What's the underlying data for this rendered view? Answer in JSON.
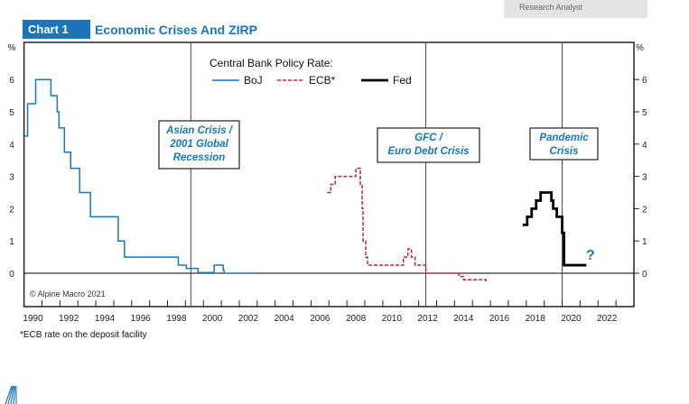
{
  "header": {
    "analyst": "Research Analyst",
    "chart_number": "Chart 1",
    "title": "Economic Crises And ZIRP"
  },
  "footnote": "*ECB rate on the deposit facility",
  "copyright": "© Alpine Macro 2021",
  "chart_data": {
    "type": "line",
    "title": "Economic Crises And ZIRP",
    "ylabel_left": "%",
    "ylabel_right": "%",
    "xlim": [
      1990,
      2024
    ],
    "ylim": [
      -1.6,
      7.15
    ],
    "x_ticks": [
      1990,
      1992,
      1994,
      1996,
      1998,
      2000,
      2002,
      2004,
      2006,
      2008,
      2010,
      2012,
      2014,
      2016,
      2018,
      2020,
      2022
    ],
    "y_ticks": [
      0,
      1,
      2,
      3,
      4,
      5,
      6
    ],
    "grid": false,
    "legend": {
      "title": "Central Bank Policy Rate:",
      "placement": "top-center"
    },
    "series": [
      {
        "name": "BoJ",
        "color": "#1a75bb",
        "style": "solid",
        "step": true,
        "x": [
          1990,
          1990.2,
          1990.65,
          1991.5,
          1991.85,
          1991.95,
          1992.25,
          1992.6,
          1993.1,
          1993.7,
          1995.25,
          1995.6,
          1998.6,
          1999.05,
          1999.7,
          2000.6,
          2001.1,
          2001.15,
          2002.9
        ],
        "y": [
          4.25,
          5.25,
          6,
          5.5,
          5,
          4.5,
          3.75,
          3.25,
          2.5,
          1.75,
          1,
          0.5,
          0.25,
          0.15,
          0.02,
          0.25,
          0.1,
          0.0,
          0.0
        ]
      },
      {
        "name": "ECB*",
        "color": "#b22a3a",
        "style": "dashed",
        "step": true,
        "x": [
          2006.9,
          2007.1,
          2007.35,
          2008.5,
          2008.75,
          2008.85,
          2008.9,
          2009.05,
          2009.15,
          2011.15,
          2011.4,
          2011.6,
          2011.8,
          2012.4,
          2014.25,
          2014.5,
          2015.75
        ],
        "y": [
          2.5,
          2.75,
          3,
          3.25,
          2.75,
          2,
          1,
          0.5,
          0.25,
          0.5,
          0.75,
          0.5,
          0.25,
          0,
          -0.1,
          -0.2,
          -0.3
        ]
      },
      {
        "name": "Fed",
        "color": "#000000",
        "style": "solid-thick",
        "step": true,
        "x": [
          2017.8,
          2018.05,
          2018.3,
          2018.55,
          2018.8,
          2019.4,
          2019.5,
          2019.7,
          2020.0,
          2020.1,
          2021.35
        ],
        "y": [
          1.5,
          1.75,
          2,
          2.25,
          2.5,
          2.25,
          2,
          1.75,
          1.25,
          0.25,
          0.25
        ]
      }
    ],
    "crises": [
      {
        "year": 1999.3,
        "label_lines": [
          "Asian Crisis /",
          "2001 Global",
          "Recession"
        ]
      },
      {
        "year": 2012.4,
        "label_lines": [
          "GFC /",
          "Euro Debt Crisis"
        ]
      },
      {
        "year": 2020.0,
        "label_lines": [
          "Pandemic",
          "Crisis"
        ]
      }
    ],
    "annotation": "?"
  },
  "colors": {
    "accent": "#1a75bb",
    "ecb": "#b22a3a",
    "fed": "#000000"
  }
}
